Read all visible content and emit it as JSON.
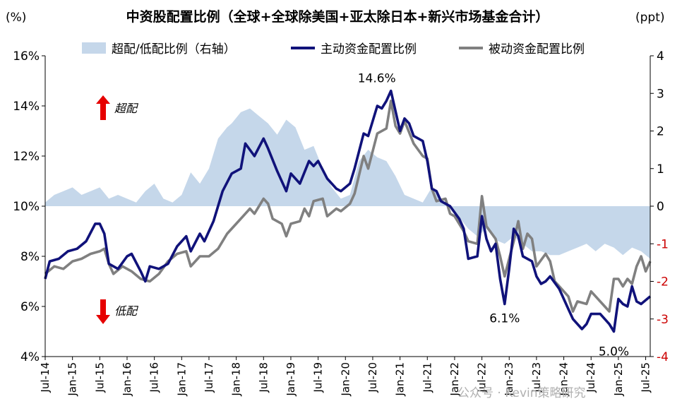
{
  "chart_data": {
    "type": "line",
    "title": "中资股配置比例（全球+全球除美国+亚太除日本+新兴市场基金合计）",
    "y_left_unit": "(%)",
    "y_right_unit": "(ppt)",
    "y_left_ticks": [
      "16%",
      "14%",
      "12%",
      "10%",
      "8%",
      "6%",
      "4%"
    ],
    "y_right_ticks": [
      "4",
      "3",
      "2",
      "1",
      "0",
      "-1",
      "-2",
      "-3",
      "-4"
    ],
    "ylim_left": [
      4,
      16
    ],
    "ylim_right": [
      -4,
      4
    ],
    "x_ticks": [
      "Jul-14",
      "Jan-15",
      "Jul-15",
      "Jan-16",
      "Jul-16",
      "Jan-17",
      "Jul-17",
      "Jan-18",
      "Jul-18",
      "Jan-19",
      "Jul-19",
      "Jan-20",
      "Jul-20",
      "Jan-21",
      "Jul-21",
      "Jan-22",
      "Jul-22",
      "Jan-23",
      "Jul-23",
      "Jan-24",
      "Jul-24",
      "Jan-25",
      "Jul-25"
    ],
    "x_start": "2014-07",
    "x_end": "2025-08",
    "grid": false,
    "legend_position": "top",
    "colors": {
      "area": "#c5d7ea",
      "active": "#10127a",
      "passive": "#808080",
      "axis_right": "#cc0000",
      "arrow": "#e60000"
    },
    "series": [
      {
        "name": "超配/低配比例（右轴）",
        "kind": "area",
        "axis": "right",
        "points": [
          [
            "2014-07",
            0.1
          ],
          [
            "2014-09",
            0.3
          ],
          [
            "2014-11",
            0.4
          ],
          [
            "2015-01",
            0.5
          ],
          [
            "2015-03",
            0.3
          ],
          [
            "2015-05",
            0.4
          ],
          [
            "2015-07",
            0.5
          ],
          [
            "2015-09",
            0.2
          ],
          [
            "2015-11",
            0.3
          ],
          [
            "2016-01",
            0.2
          ],
          [
            "2016-03",
            0.1
          ],
          [
            "2016-05",
            0.4
          ],
          [
            "2016-07",
            0.6
          ],
          [
            "2016-09",
            0.2
          ],
          [
            "2016-11",
            0.1
          ],
          [
            "2017-01",
            0.3
          ],
          [
            "2017-03",
            0.9
          ],
          [
            "2017-05",
            0.6
          ],
          [
            "2017-07",
            1.0
          ],
          [
            "2017-09",
            1.8
          ],
          [
            "2017-11",
            2.1
          ],
          [
            "2017-12",
            2.2
          ],
          [
            "2018-02",
            2.5
          ],
          [
            "2018-04",
            2.6
          ],
          [
            "2018-06",
            2.4
          ],
          [
            "2018-08",
            2.2
          ],
          [
            "2018-10",
            1.9
          ],
          [
            "2018-12",
            2.3
          ],
          [
            "2019-02",
            2.1
          ],
          [
            "2019-04",
            1.5
          ],
          [
            "2019-06",
            1.6
          ],
          [
            "2019-08",
            1.0
          ],
          [
            "2019-10",
            0.5
          ],
          [
            "2019-12",
            0.2
          ],
          [
            "2020-02",
            0.3
          ],
          [
            "2020-04",
            1.2
          ],
          [
            "2020-06",
            1.5
          ],
          [
            "2020-08",
            1.3
          ],
          [
            "2020-10",
            1.2
          ],
          [
            "2020-12",
            0.8
          ],
          [
            "2021-02",
            0.3
          ],
          [
            "2021-04",
            0.2
          ],
          [
            "2021-06",
            0.1
          ],
          [
            "2021-08",
            0.5
          ],
          [
            "2021-10",
            0.2
          ],
          [
            "2021-12",
            0.0
          ],
          [
            "2022-02",
            -0.3
          ],
          [
            "2022-04",
            -0.6
          ],
          [
            "2022-06",
            -0.8
          ],
          [
            "2022-08",
            -0.6
          ],
          [
            "2022-10",
            -0.9
          ],
          [
            "2022-12",
            -1.0
          ],
          [
            "2023-02",
            -0.8
          ],
          [
            "2023-04",
            -1.0
          ],
          [
            "2023-06",
            -1.2
          ],
          [
            "2023-08",
            -1.2
          ],
          [
            "2023-10",
            -1.3
          ],
          [
            "2023-12",
            -1.3
          ],
          [
            "2024-02",
            -1.2
          ],
          [
            "2024-04",
            -1.1
          ],
          [
            "2024-06",
            -1.0
          ],
          [
            "2024-08",
            -1.2
          ],
          [
            "2024-10",
            -1.0
          ],
          [
            "2024-12",
            -1.1
          ],
          [
            "2025-02",
            -1.3
          ],
          [
            "2025-04",
            -1.1
          ],
          [
            "2025-06",
            -1.2
          ],
          [
            "2025-08",
            -1.4
          ]
        ]
      },
      {
        "name": "主动资金配置比例",
        "kind": "line",
        "axis": "left",
        "points": [
          [
            "2014-07",
            7.1
          ],
          [
            "2014-08",
            7.8
          ],
          [
            "2014-10",
            7.9
          ],
          [
            "2014-12",
            8.2
          ],
          [
            "2015-02",
            8.3
          ],
          [
            "2015-04",
            8.6
          ],
          [
            "2015-06",
            9.3
          ],
          [
            "2015-07",
            9.3
          ],
          [
            "2015-08",
            8.9
          ],
          [
            "2015-09",
            7.7
          ],
          [
            "2015-11",
            7.5
          ],
          [
            "2016-01",
            8.0
          ],
          [
            "2016-02",
            8.1
          ],
          [
            "2016-04",
            7.4
          ],
          [
            "2016-05",
            7.0
          ],
          [
            "2016-06",
            7.6
          ],
          [
            "2016-08",
            7.5
          ],
          [
            "2016-10",
            7.7
          ],
          [
            "2016-12",
            8.4
          ],
          [
            "2017-02",
            8.8
          ],
          [
            "2017-03",
            8.2
          ],
          [
            "2017-05",
            8.9
          ],
          [
            "2017-06",
            8.6
          ],
          [
            "2017-08",
            9.4
          ],
          [
            "2017-10",
            10.6
          ],
          [
            "2017-12",
            11.3
          ],
          [
            "2018-02",
            11.5
          ],
          [
            "2018-03",
            12.5
          ],
          [
            "2018-05",
            12.0
          ],
          [
            "2018-07",
            12.7
          ],
          [
            "2018-08",
            12.3
          ],
          [
            "2018-10",
            11.4
          ],
          [
            "2018-12",
            10.6
          ],
          [
            "2019-01",
            11.3
          ],
          [
            "2019-03",
            10.9
          ],
          [
            "2019-05",
            11.8
          ],
          [
            "2019-06",
            11.6
          ],
          [
            "2019-07",
            11.8
          ],
          [
            "2019-09",
            11.1
          ],
          [
            "2019-11",
            10.7
          ],
          [
            "2019-12",
            10.6
          ],
          [
            "2020-02",
            10.9
          ],
          [
            "2020-03",
            11.5
          ],
          [
            "2020-05",
            12.9
          ],
          [
            "2020-06",
            12.8
          ],
          [
            "2020-08",
            14.0
          ],
          [
            "2020-09",
            13.9
          ],
          [
            "2020-10",
            14.2
          ],
          [
            "2020-11",
            14.6
          ],
          [
            "2021-01",
            13.0
          ],
          [
            "2021-02",
            13.5
          ],
          [
            "2021-03",
            13.3
          ],
          [
            "2021-04",
            12.8
          ],
          [
            "2021-06",
            12.6
          ],
          [
            "2021-07",
            11.8
          ],
          [
            "2021-08",
            10.7
          ],
          [
            "2021-09",
            10.6
          ],
          [
            "2021-10",
            10.2
          ],
          [
            "2021-12",
            10.0
          ],
          [
            "2022-02",
            9.5
          ],
          [
            "2022-03",
            9.1
          ],
          [
            "2022-04",
            7.9
          ],
          [
            "2022-06",
            8.0
          ],
          [
            "2022-07",
            9.6
          ],
          [
            "2022-08",
            8.7
          ],
          [
            "2022-09",
            8.2
          ],
          [
            "2022-10",
            8.5
          ],
          [
            "2022-11",
            7.1
          ],
          [
            "2022-12",
            6.1
          ],
          [
            "2023-01",
            7.5
          ],
          [
            "2023-02",
            9.1
          ],
          [
            "2023-03",
            8.8
          ],
          [
            "2023-04",
            8.0
          ],
          [
            "2023-06",
            7.8
          ],
          [
            "2023-07",
            7.2
          ],
          [
            "2023-08",
            6.9
          ],
          [
            "2023-09",
            7.0
          ],
          [
            "2023-10",
            7.2
          ],
          [
            "2023-12",
            6.7
          ],
          [
            "2024-02",
            5.9
          ],
          [
            "2024-03",
            5.5
          ],
          [
            "2024-05",
            5.1
          ],
          [
            "2024-06",
            5.3
          ],
          [
            "2024-07",
            5.7
          ],
          [
            "2024-09",
            5.7
          ],
          [
            "2024-11",
            5.3
          ],
          [
            "2024-12",
            5.0
          ],
          [
            "2025-01",
            6.3
          ],
          [
            "2025-02",
            6.1
          ],
          [
            "2025-03",
            6.0
          ],
          [
            "2025-04",
            6.8
          ],
          [
            "2025-05",
            6.2
          ],
          [
            "2025-06",
            6.1
          ],
          [
            "2025-08",
            6.4
          ]
        ]
      },
      {
        "name": "被动资金配置比例",
        "kind": "line",
        "axis": "left",
        "points": [
          [
            "2014-07",
            7.3
          ],
          [
            "2014-09",
            7.6
          ],
          [
            "2014-11",
            7.5
          ],
          [
            "2015-01",
            7.8
          ],
          [
            "2015-03",
            7.9
          ],
          [
            "2015-05",
            8.1
          ],
          [
            "2015-07",
            8.2
          ],
          [
            "2015-08",
            8.3
          ],
          [
            "2015-09",
            7.7
          ],
          [
            "2015-10",
            7.3
          ],
          [
            "2015-12",
            7.6
          ],
          [
            "2016-02",
            7.4
          ],
          [
            "2016-04",
            7.1
          ],
          [
            "2016-06",
            7.0
          ],
          [
            "2016-08",
            7.3
          ],
          [
            "2016-10",
            7.8
          ],
          [
            "2016-12",
            8.1
          ],
          [
            "2017-02",
            8.2
          ],
          [
            "2017-03",
            7.6
          ],
          [
            "2017-05",
            8.0
          ],
          [
            "2017-07",
            8.0
          ],
          [
            "2017-09",
            8.3
          ],
          [
            "2017-11",
            8.9
          ],
          [
            "2018-01",
            9.3
          ],
          [
            "2018-03",
            9.7
          ],
          [
            "2018-04",
            9.9
          ],
          [
            "2018-05",
            9.7
          ],
          [
            "2018-07",
            10.3
          ],
          [
            "2018-08",
            10.1
          ],
          [
            "2018-09",
            9.5
          ],
          [
            "2018-11",
            9.3
          ],
          [
            "2018-12",
            8.8
          ],
          [
            "2019-01",
            9.3
          ],
          [
            "2019-03",
            9.4
          ],
          [
            "2019-04",
            9.9
          ],
          [
            "2019-05",
            9.6
          ],
          [
            "2019-06",
            10.2
          ],
          [
            "2019-08",
            10.3
          ],
          [
            "2019-09",
            9.6
          ],
          [
            "2019-11",
            9.9
          ],
          [
            "2019-12",
            9.8
          ],
          [
            "2020-02",
            10.1
          ],
          [
            "2020-03",
            10.5
          ],
          [
            "2020-05",
            12.0
          ],
          [
            "2020-06",
            11.5
          ],
          [
            "2020-08",
            12.9
          ],
          [
            "2020-10",
            13.1
          ],
          [
            "2020-11",
            14.2
          ],
          [
            "2020-12",
            13.2
          ],
          [
            "2021-01",
            12.9
          ],
          [
            "2021-02",
            13.4
          ],
          [
            "2021-04",
            12.5
          ],
          [
            "2021-06",
            12.0
          ],
          [
            "2021-07",
            11.9
          ],
          [
            "2021-08",
            10.7
          ],
          [
            "2021-09",
            10.2
          ],
          [
            "2021-11",
            10.3
          ],
          [
            "2021-12",
            9.7
          ],
          [
            "2022-01",
            9.6
          ],
          [
            "2022-03",
            9.0
          ],
          [
            "2022-04",
            8.6
          ],
          [
            "2022-06",
            8.5
          ],
          [
            "2022-07",
            10.4
          ],
          [
            "2022-08",
            9.2
          ],
          [
            "2022-10",
            8.7
          ],
          [
            "2022-11",
            8.0
          ],
          [
            "2022-12",
            7.2
          ],
          [
            "2023-01",
            7.9
          ],
          [
            "2023-02",
            8.6
          ],
          [
            "2023-03",
            9.4
          ],
          [
            "2023-04",
            8.3
          ],
          [
            "2023-05",
            8.9
          ],
          [
            "2023-06",
            8.7
          ],
          [
            "2023-07",
            7.6
          ],
          [
            "2023-09",
            8.1
          ],
          [
            "2023-10",
            7.8
          ],
          [
            "2023-11",
            7.0
          ],
          [
            "2024-01",
            6.6
          ],
          [
            "2024-02",
            6.4
          ],
          [
            "2024-03",
            5.8
          ],
          [
            "2024-04",
            6.2
          ],
          [
            "2024-06",
            6.1
          ],
          [
            "2024-07",
            6.6
          ],
          [
            "2024-08",
            6.4
          ],
          [
            "2024-10",
            6.0
          ],
          [
            "2024-11",
            5.8
          ],
          [
            "2024-12",
            7.1
          ],
          [
            "2025-01",
            7.1
          ],
          [
            "2025-02",
            6.8
          ],
          [
            "2025-03",
            7.1
          ],
          [
            "2025-04",
            6.9
          ],
          [
            "2025-05",
            7.6
          ],
          [
            "2025-06",
            8.0
          ],
          [
            "2025-07",
            7.4
          ],
          [
            "2025-08",
            7.8
          ]
        ]
      }
    ],
    "annotations": [
      {
        "text": "14.6%",
        "x": "2020-11",
        "y": 14.6
      },
      {
        "text": "6.1%",
        "x": "2022-12",
        "y": 6.1
      },
      {
        "text": "5.0%",
        "x": "2024-12",
        "y": 5.0
      }
    ],
    "markers": {
      "over": "超配",
      "under": "低配"
    }
  },
  "watermark": "公众号 · Kevin策略研究"
}
